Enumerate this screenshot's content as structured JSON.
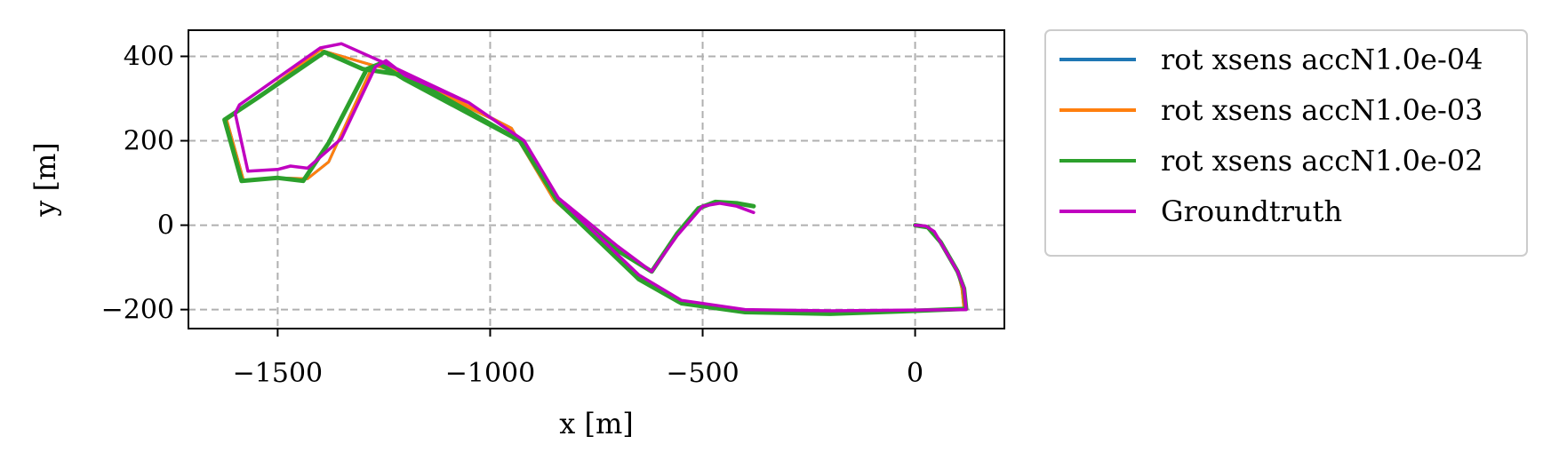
{
  "chart_data": {
    "type": "line",
    "title": "",
    "xlabel": "x [m]",
    "ylabel": "y [m]",
    "xlim": [
      -1710,
      210
    ],
    "ylim": [
      -245,
      462
    ],
    "xticks": [
      -1500,
      -1000,
      -500,
      0
    ],
    "xtick_labels": [
      "−1500",
      "−1000",
      "−500",
      "0"
    ],
    "yticks": [
      -200,
      0,
      200,
      400
    ],
    "ytick_labels": [
      "−200",
      "0",
      "200",
      "400"
    ],
    "grid": true,
    "legend_position": "outside-right",
    "series": [
      {
        "name": "rot xsens accN1.0e-04",
        "color": "#1f77b4",
        "points": [
          [
            0,
            0
          ],
          [
            30,
            -5
          ],
          [
            60,
            -40
          ],
          [
            100,
            -110
          ],
          [
            110,
            -150
          ],
          [
            115,
            -200
          ],
          [
            0,
            -202
          ],
          [
            -200,
            -205
          ],
          [
            -400,
            -202
          ],
          [
            -550,
            -180
          ],
          [
            -650,
            -120
          ],
          [
            -850,
            60
          ],
          [
            -950,
            230
          ],
          [
            -1200,
            360
          ],
          [
            -1280,
            380
          ],
          [
            -1400,
            415
          ],
          [
            -1550,
            300
          ],
          [
            -1620,
            250
          ],
          [
            -1580,
            105
          ],
          [
            -1500,
            112
          ],
          [
            -1430,
            110
          ],
          [
            -1380,
            150
          ],
          [
            -1280,
            370
          ],
          [
            -1260,
            385
          ],
          [
            -1200,
            350
          ],
          [
            -950,
            230
          ]
        ]
      },
      {
        "name": "rot xsens accN1.0e-03",
        "color": "#ff7f0e",
        "points": [
          [
            0,
            0
          ],
          [
            30,
            -5
          ],
          [
            60,
            -40
          ],
          [
            100,
            -110
          ],
          [
            110,
            -150
          ],
          [
            115,
            -200
          ],
          [
            0,
            -202
          ],
          [
            -200,
            -205
          ],
          [
            -400,
            -202
          ],
          [
            -550,
            -180
          ],
          [
            -650,
            -120
          ],
          [
            -850,
            60
          ],
          [
            -950,
            230
          ],
          [
            -1200,
            360
          ],
          [
            -1280,
            380
          ],
          [
            -1400,
            415
          ],
          [
            -1550,
            300
          ],
          [
            -1620,
            250
          ],
          [
            -1580,
            105
          ],
          [
            -1500,
            112
          ],
          [
            -1430,
            110
          ],
          [
            -1380,
            150
          ],
          [
            -1280,
            370
          ],
          [
            -1260,
            385
          ],
          [
            -1200,
            350
          ],
          [
            -950,
            230
          ]
        ]
      },
      {
        "name": "rot xsens accN1.0e-02",
        "color": "#2ca02c",
        "points": [
          [
            0,
            0
          ],
          [
            30,
            -5
          ],
          [
            60,
            -40
          ],
          [
            100,
            -110
          ],
          [
            115,
            -150
          ],
          [
            120,
            -198
          ],
          [
            0,
            -203
          ],
          [
            -200,
            -210
          ],
          [
            -400,
            -206
          ],
          [
            -550,
            -185
          ],
          [
            -650,
            -128
          ],
          [
            -840,
            55
          ],
          [
            -930,
            200
          ],
          [
            -1200,
            355
          ],
          [
            -1300,
            370
          ],
          [
            -1390,
            410
          ],
          [
            -1550,
            300
          ],
          [
            -1625,
            250
          ],
          [
            -1585,
            105
          ],
          [
            -1500,
            112
          ],
          [
            -1440,
            105
          ],
          [
            -1380,
            195
          ],
          [
            -1290,
            370
          ],
          [
            -1260,
            382
          ],
          [
            -1200,
            345
          ],
          [
            -930,
            200
          ],
          [
            -840,
            55
          ],
          [
            -700,
            -60
          ],
          [
            -620,
            -110
          ],
          [
            -560,
            -20
          ],
          [
            -510,
            40
          ],
          [
            -470,
            55
          ],
          [
            -420,
            52
          ],
          [
            -380,
            45
          ]
        ]
      },
      {
        "name": "Groundtruth",
        "color": "#c000c0",
        "points": [
          [
            0,
            0
          ],
          [
            25,
            -2
          ],
          [
            45,
            -15
          ],
          [
            100,
            -110
          ],
          [
            115,
            -150
          ],
          [
            120,
            -200
          ],
          [
            0,
            -201
          ],
          [
            -200,
            -203
          ],
          [
            -400,
            -200
          ],
          [
            -550,
            -178
          ],
          [
            -650,
            -118
          ],
          [
            -840,
            65
          ],
          [
            -920,
            200
          ],
          [
            -1050,
            290
          ],
          [
            -1250,
            385
          ],
          [
            -1350,
            430
          ],
          [
            -1400,
            420
          ],
          [
            -1590,
            285
          ],
          [
            -1600,
            265
          ],
          [
            -1570,
            128
          ],
          [
            -1500,
            132
          ],
          [
            -1470,
            140
          ],
          [
            -1430,
            135
          ],
          [
            -1350,
            205
          ],
          [
            -1270,
            375
          ],
          [
            -1245,
            390
          ],
          [
            -1200,
            355
          ],
          [
            -1050,
            290
          ],
          [
            -920,
            200
          ],
          [
            -840,
            65
          ],
          [
            -700,
            -50
          ],
          [
            -620,
            -110
          ],
          [
            -560,
            -25
          ],
          [
            -500,
            45
          ],
          [
            -460,
            52
          ],
          [
            -420,
            45
          ],
          [
            -380,
            30
          ]
        ]
      }
    ]
  }
}
